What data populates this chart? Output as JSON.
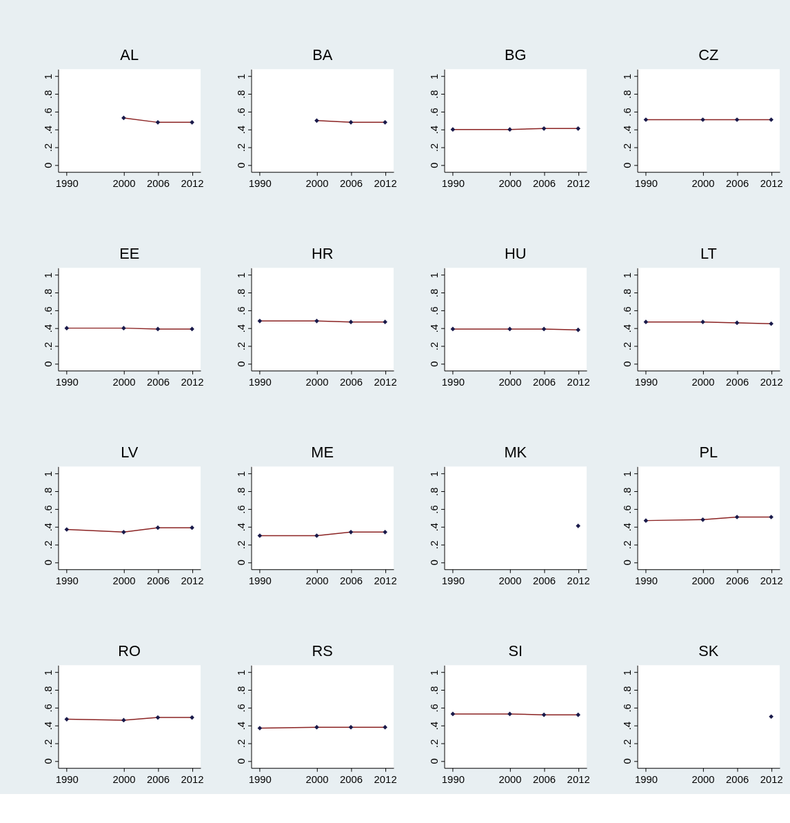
{
  "chart_data": [
    {
      "type": "line",
      "title": "AL",
      "xlim": [
        1988.5,
        2013.5
      ],
      "xticks": [
        1990,
        2000,
        2006,
        2012
      ],
      "ylim": [
        -0.08,
        1.08
      ],
      "yticks": [
        0,
        {
          "value": 0.2,
          "label": ".2"
        },
        {
          "value": 0.4,
          "label": ".4"
        },
        {
          "value": 0.6,
          "label": ".6"
        },
        {
          "value": 0.8,
          "label": ".8"
        },
        1
      ],
      "grid": false,
      "marker": "diamond",
      "series": [
        {
          "type": "line",
          "color": "#8b2323",
          "colors": [
            "#1a1a4a",
            "#1a1a4a",
            "#1a1a4a"
          ],
          "x": [
            2000,
            2006,
            2012
          ],
          "values": [
            0.53,
            0.48,
            0.48
          ]
        }
      ]
    },
    {
      "type": "line",
      "title": "BA",
      "xlim": [
        1988.5,
        2013.5
      ],
      "xticks": [
        1990,
        2000,
        2006,
        2012
      ],
      "ylim": [
        -0.08,
        1.08
      ],
      "yticks": [
        0,
        {
          "value": 0.2,
          "label": ".2"
        },
        {
          "value": 0.4,
          "label": ".4"
        },
        {
          "value": 0.6,
          "label": ".6"
        },
        {
          "value": 0.8,
          "label": ".8"
        },
        1
      ],
      "grid": false,
      "marker": "diamond",
      "series": [
        {
          "type": "line",
          "color": "#8b2323",
          "colors": [
            "#1a1a4a",
            "#1a1a4a",
            "#1a1a4a"
          ],
          "x": [
            2000,
            2006,
            2012
          ],
          "values": [
            0.5,
            0.48,
            0.48
          ]
        }
      ]
    },
    {
      "type": "line",
      "title": "BG",
      "xlim": [
        1988.5,
        2013.5
      ],
      "xticks": [
        1990,
        2000,
        2006,
        2012
      ],
      "ylim": [
        -0.08,
        1.08
      ],
      "yticks": [
        0,
        {
          "value": 0.2,
          "label": ".2"
        },
        {
          "value": 0.4,
          "label": ".4"
        },
        {
          "value": 0.6,
          "label": ".6"
        },
        {
          "value": 0.8,
          "label": ".8"
        },
        1
      ],
      "grid": false,
      "marker": "diamond",
      "series": [
        {
          "type": "line",
          "color": "#8b2323",
          "colors": [
            "#1a1a4a",
            "#1a1a4a",
            "#1a1a4a",
            "#1a1a4a"
          ],
          "x": [
            1990,
            2000,
            2006,
            2012
          ],
          "values": [
            0.4,
            0.4,
            0.41,
            0.41
          ]
        }
      ]
    },
    {
      "type": "line",
      "title": "CZ",
      "xlim": [
        1988.5,
        2013.5
      ],
      "xticks": [
        1990,
        2000,
        2006,
        2012
      ],
      "ylim": [
        -0.08,
        1.08
      ],
      "yticks": [
        0,
        {
          "value": 0.2,
          "label": ".2"
        },
        {
          "value": 0.4,
          "label": ".4"
        },
        {
          "value": 0.6,
          "label": ".6"
        },
        {
          "value": 0.8,
          "label": ".8"
        },
        1
      ],
      "grid": false,
      "marker": "diamond",
      "series": [
        {
          "type": "line",
          "color": "#8b2323",
          "colors": [
            "#1a1a4a",
            "#1a1a4a",
            "#1a1a4a",
            "#1a1a4a"
          ],
          "x": [
            1990,
            2000,
            2006,
            2012
          ],
          "values": [
            0.51,
            0.51,
            0.51,
            0.51
          ]
        }
      ]
    },
    {
      "type": "line",
      "title": "EE",
      "xlim": [
        1988.5,
        2013.5
      ],
      "xticks": [
        1990,
        2000,
        2006,
        2012
      ],
      "ylim": [
        -0.08,
        1.08
      ],
      "yticks": [
        0,
        {
          "value": 0.2,
          "label": ".2"
        },
        {
          "value": 0.4,
          "label": ".4"
        },
        {
          "value": 0.6,
          "label": ".6"
        },
        {
          "value": 0.8,
          "label": ".8"
        },
        1
      ],
      "grid": false,
      "marker": "diamond",
      "series": [
        {
          "type": "line",
          "color": "#8b2323",
          "colors": [
            "#1a1a4a",
            "#1a1a4a",
            "#1a1a4a",
            "#1a1a4a"
          ],
          "x": [
            1990,
            2000,
            2006,
            2012
          ],
          "values": [
            0.4,
            0.4,
            0.39,
            0.39
          ]
        }
      ]
    },
    {
      "type": "line",
      "title": "HR",
      "xlim": [
        1988.5,
        2013.5
      ],
      "xticks": [
        1990,
        2000,
        2006,
        2012
      ],
      "ylim": [
        -0.08,
        1.08
      ],
      "yticks": [
        0,
        {
          "value": 0.2,
          "label": ".2"
        },
        {
          "value": 0.4,
          "label": ".4"
        },
        {
          "value": 0.6,
          "label": ".6"
        },
        {
          "value": 0.8,
          "label": ".8"
        },
        1
      ],
      "grid": false,
      "marker": "diamond",
      "series": [
        {
          "type": "line",
          "color": "#8b2323",
          "colors": [
            "#1a1a4a",
            "#1a1a4a",
            "#1a1a4a",
            "#1a1a4a"
          ],
          "x": [
            1990,
            2000,
            2006,
            2012
          ],
          "values": [
            0.48,
            0.48,
            0.47,
            0.47
          ]
        }
      ]
    },
    {
      "type": "line",
      "title": "HU",
      "xlim": [
        1988.5,
        2013.5
      ],
      "xticks": [
        1990,
        2000,
        2006,
        2012
      ],
      "ylim": [
        -0.08,
        1.08
      ],
      "yticks": [
        0,
        {
          "value": 0.2,
          "label": ".2"
        },
        {
          "value": 0.4,
          "label": ".4"
        },
        {
          "value": 0.6,
          "label": ".6"
        },
        {
          "value": 0.8,
          "label": ".8"
        },
        1
      ],
      "grid": false,
      "marker": "diamond",
      "series": [
        {
          "type": "line",
          "color": "#8b2323",
          "colors": [
            "#1a1a4a",
            "#1a1a4a",
            "#1a1a4a",
            "#1a1a4a"
          ],
          "x": [
            1990,
            2000,
            2006,
            2012
          ],
          "values": [
            0.39,
            0.39,
            0.39,
            0.38
          ]
        }
      ]
    },
    {
      "type": "line",
      "title": "LT",
      "xlim": [
        1988.5,
        2013.5
      ],
      "xticks": [
        1990,
        2000,
        2006,
        2012
      ],
      "ylim": [
        -0.08,
        1.08
      ],
      "yticks": [
        0,
        {
          "value": 0.2,
          "label": ".2"
        },
        {
          "value": 0.4,
          "label": ".4"
        },
        {
          "value": 0.6,
          "label": ".6"
        },
        {
          "value": 0.8,
          "label": ".8"
        },
        1
      ],
      "grid": false,
      "marker": "diamond",
      "series": [
        {
          "type": "line",
          "color": "#8b2323",
          "colors": [
            "#1a1a4a",
            "#1a1a4a",
            "#1a1a4a",
            "#1a1a4a"
          ],
          "x": [
            1990,
            2000,
            2006,
            2012
          ],
          "values": [
            0.47,
            0.47,
            0.46,
            0.45
          ]
        }
      ]
    },
    {
      "type": "line",
      "title": "LV",
      "xlim": [
        1988.5,
        2013.5
      ],
      "xticks": [
        1990,
        2000,
        2006,
        2012
      ],
      "ylim": [
        -0.08,
        1.08
      ],
      "yticks": [
        0,
        {
          "value": 0.2,
          "label": ".2"
        },
        {
          "value": 0.4,
          "label": ".4"
        },
        {
          "value": 0.6,
          "label": ".6"
        },
        {
          "value": 0.8,
          "label": ".8"
        },
        1
      ],
      "grid": false,
      "marker": "diamond",
      "series": [
        {
          "type": "line",
          "color": "#8b2323",
          "colors": [
            "#1a1a4a",
            "#1a1a4a",
            "#1a1a4a",
            "#1a1a4a"
          ],
          "x": [
            1990,
            2000,
            2006,
            2012
          ],
          "values": [
            0.37,
            0.34,
            0.39,
            0.39
          ]
        }
      ]
    },
    {
      "type": "line",
      "title": "ME",
      "xlim": [
        1988.5,
        2013.5
      ],
      "xticks": [
        1990,
        2000,
        2006,
        2012
      ],
      "ylim": [
        -0.08,
        1.08
      ],
      "yticks": [
        0,
        {
          "value": 0.2,
          "label": ".2"
        },
        {
          "value": 0.4,
          "label": ".4"
        },
        {
          "value": 0.6,
          "label": ".6"
        },
        {
          "value": 0.8,
          "label": ".8"
        },
        1
      ],
      "grid": false,
      "marker": "diamond",
      "series": [
        {
          "type": "line",
          "color": "#8b2323",
          "colors": [
            "#1a1a4a",
            "#1a1a4a",
            "#1a1a4a",
            "#1a1a4a"
          ],
          "x": [
            1990,
            2000,
            2006,
            2012
          ],
          "values": [
            0.3,
            0.3,
            0.34,
            0.34
          ]
        }
      ]
    },
    {
      "type": "line",
      "title": "MK",
      "xlim": [
        1988.5,
        2013.5
      ],
      "xticks": [
        1990,
        2000,
        2006,
        2012
      ],
      "ylim": [
        -0.08,
        1.08
      ],
      "yticks": [
        0,
        {
          "value": 0.2,
          "label": ".2"
        },
        {
          "value": 0.4,
          "label": ".4"
        },
        {
          "value": 0.6,
          "label": ".6"
        },
        {
          "value": 0.8,
          "label": ".8"
        },
        1
      ],
      "grid": false,
      "marker": "diamond",
      "series": [
        {
          "type": "line",
          "color": "#8b2323",
          "colors": [
            "#1a1a4a"
          ],
          "x": [
            2012
          ],
          "values": [
            0.41
          ]
        }
      ]
    },
    {
      "type": "line",
      "title": "PL",
      "xlim": [
        1988.5,
        2013.5
      ],
      "xticks": [
        1990,
        2000,
        2006,
        2012
      ],
      "ylim": [
        -0.08,
        1.08
      ],
      "yticks": [
        0,
        {
          "value": 0.2,
          "label": ".2"
        },
        {
          "value": 0.4,
          "label": ".4"
        },
        {
          "value": 0.6,
          "label": ".6"
        },
        {
          "value": 0.8,
          "label": ".8"
        },
        1
      ],
      "grid": false,
      "marker": "diamond",
      "series": [
        {
          "type": "line",
          "color": "#8b2323",
          "colors": [
            "#1a1a4a",
            "#1a1a4a",
            "#1a1a4a",
            "#1a1a4a"
          ],
          "x": [
            1990,
            2000,
            2006,
            2012
          ],
          "values": [
            0.47,
            0.48,
            0.51,
            0.51
          ]
        }
      ]
    },
    {
      "type": "line",
      "title": "RO",
      "xlim": [
        1988.5,
        2013.5
      ],
      "xticks": [
        1990,
        2000,
        2006,
        2012
      ],
      "ylim": [
        -0.08,
        1.08
      ],
      "yticks": [
        0,
        {
          "value": 0.2,
          "label": ".2"
        },
        {
          "value": 0.4,
          "label": ".4"
        },
        {
          "value": 0.6,
          "label": ".6"
        },
        {
          "value": 0.8,
          "label": ".8"
        },
        1
      ],
      "grid": false,
      "marker": "diamond",
      "series": [
        {
          "type": "line",
          "color": "#8b2323",
          "colors": [
            "#1a1a4a",
            "#1a1a4a",
            "#1a1a4a",
            "#1a1a4a"
          ],
          "x": [
            1990,
            2000,
            2006,
            2012
          ],
          "values": [
            0.47,
            0.46,
            0.49,
            0.49
          ]
        }
      ]
    },
    {
      "type": "line",
      "title": "RS",
      "xlim": [
        1988.5,
        2013.5
      ],
      "xticks": [
        1990,
        2000,
        2006,
        2012
      ],
      "ylim": [
        -0.08,
        1.08
      ],
      "yticks": [
        0,
        {
          "value": 0.2,
          "label": ".2"
        },
        {
          "value": 0.4,
          "label": ".4"
        },
        {
          "value": 0.6,
          "label": ".6"
        },
        {
          "value": 0.8,
          "label": ".8"
        },
        1
      ],
      "grid": false,
      "marker": "diamond",
      "series": [
        {
          "type": "line",
          "color": "#8b2323",
          "colors": [
            "#1a1a4a",
            "#1a1a4a",
            "#1a1a4a",
            "#1a1a4a"
          ],
          "x": [
            1990,
            2000,
            2006,
            2012
          ],
          "values": [
            0.37,
            0.38,
            0.38,
            0.38
          ]
        }
      ]
    },
    {
      "type": "line",
      "title": "SI",
      "xlim": [
        1988.5,
        2013.5
      ],
      "xticks": [
        1990,
        2000,
        2006,
        2012
      ],
      "ylim": [
        -0.08,
        1.08
      ],
      "yticks": [
        0,
        {
          "value": 0.2,
          "label": ".2"
        },
        {
          "value": 0.4,
          "label": ".4"
        },
        {
          "value": 0.6,
          "label": ".6"
        },
        {
          "value": 0.8,
          "label": ".8"
        },
        1
      ],
      "grid": false,
      "marker": "diamond",
      "series": [
        {
          "type": "line",
          "color": "#8b2323",
          "colors": [
            "#1a1a4a",
            "#1a1a4a",
            "#1a1a4a",
            "#1a1a4a"
          ],
          "x": [
            1990,
            2000,
            2006,
            2012
          ],
          "values": [
            0.53,
            0.53,
            0.52,
            0.52
          ]
        }
      ]
    },
    {
      "type": "line",
      "title": "SK",
      "xlim": [
        1988.5,
        2013.5
      ],
      "xticks": [
        1990,
        2000,
        2006,
        2012
      ],
      "ylim": [
        -0.08,
        1.08
      ],
      "yticks": [
        0,
        {
          "value": 0.2,
          "label": ".2"
        },
        {
          "value": 0.4,
          "label": ".4"
        },
        {
          "value": 0.6,
          "label": ".6"
        },
        {
          "value": 0.8,
          "label": ".8"
        },
        1
      ],
      "grid": false,
      "marker": "diamond",
      "series": [
        {
          "type": "line",
          "color": "#8b2323",
          "colors": [
            "#1a1a4a"
          ],
          "x": [
            2012
          ],
          "values": [
            0.5
          ]
        }
      ]
    }
  ]
}
